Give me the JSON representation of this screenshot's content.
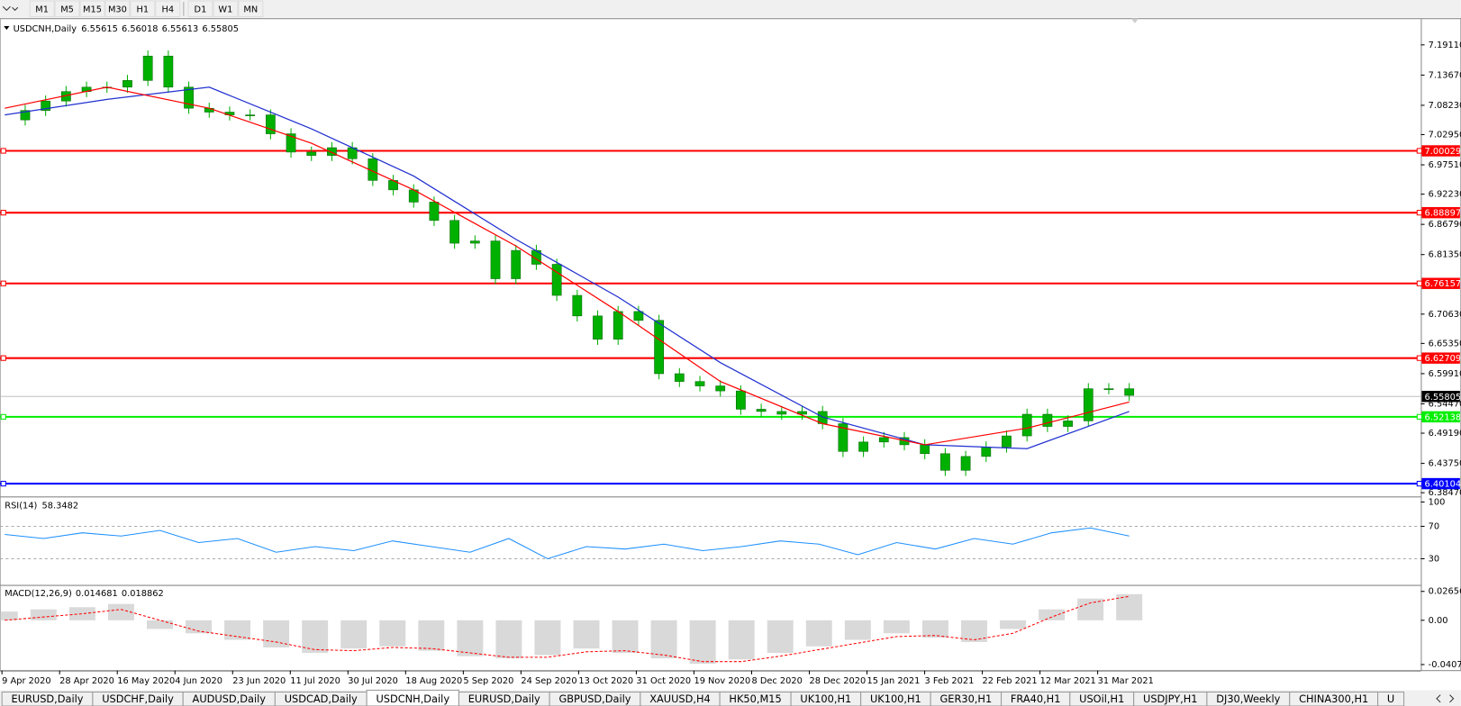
{
  "toolbar": {
    "buttons": [
      "M1",
      "M5",
      "M15",
      "M30",
      "H1",
      "H4",
      "D1",
      "W1",
      "MN"
    ]
  },
  "chart": {
    "symbol": "USDCNH,Daily",
    "ohlc": [
      6.55615,
      6.56018,
      6.55613,
      6.55805
    ],
    "ylim": [
      6.378,
      7.235
    ],
    "yticks": [
      {
        "value": 7.1911,
        "label": "7.19110"
      },
      {
        "value": 7.1367,
        "label": "7.13670"
      },
      {
        "value": 7.0823,
        "label": "7.08230"
      },
      {
        "value": 7.0295,
        "label": "7.02950"
      },
      {
        "value": 6.9751,
        "label": "6.97510"
      },
      {
        "value": 6.9223,
        "label": "6.92230"
      },
      {
        "value": 6.8679,
        "label": "6.86790"
      },
      {
        "value": 6.8135,
        "label": "6.81350"
      },
      {
        "value": 6.7063,
        "label": "6.70630"
      },
      {
        "value": 6.6535,
        "label": "6.65350"
      },
      {
        "value": 6.5991,
        "label": "6.59910"
      },
      {
        "value": 6.5447,
        "label": "6.54470"
      },
      {
        "value": 6.4919,
        "label": "6.49190"
      },
      {
        "value": 6.4375,
        "label": "6.43750"
      },
      {
        "value": 6.3847,
        "label": "6.38470"
      }
    ],
    "current": 6.55805,
    "levels": [
      {
        "value": 7.00029,
        "color": "#ff0000"
      },
      {
        "value": 6.88897,
        "color": "#ff0000"
      },
      {
        "value": 6.76157,
        "color": "#ff0000"
      },
      {
        "value": 6.62709,
        "color": "#ff0000"
      },
      {
        "value": 6.52138,
        "color": "#00ee00"
      },
      {
        "value": 6.40104,
        "color": "#0000ff"
      }
    ],
    "close": {
      "color": "#00b000",
      "values": [
        7.056,
        7.073,
        7.09,
        7.107,
        7.115,
        7.115,
        7.127,
        7.171,
        7.115,
        7.077,
        7.07,
        7.065,
        7.065,
        7.031,
        6.998,
        6.992,
        7.006,
        6.986,
        6.947,
        6.93,
        6.908,
        6.875,
        6.834,
        6.838,
        6.77,
        6.821,
        6.796,
        6.74,
        6.703,
        6.661,
        6.711,
        6.695,
        6.599,
        6.585,
        6.577,
        6.568,
        6.535,
        6.531,
        6.526,
        6.531,
        6.509,
        6.459,
        6.476,
        6.484,
        6.471,
        6.455,
        6.425,
        6.45,
        6.467,
        6.487,
        6.526,
        6.504,
        6.514,
        6.572,
        6.572,
        6.56
      ]
    },
    "ma_fast": {
      "color": "#ff0000",
      "values": [
        7.077,
        7.115,
        7.077,
        7.014,
        6.93,
        6.829,
        6.711,
        6.585,
        6.509,
        6.471,
        6.501,
        6.548
      ]
    },
    "ma_slow": {
      "color": "#2030d0",
      "values": [
        7.065,
        7.093,
        7.115,
        7.04,
        6.955,
        6.841,
        6.737,
        6.619,
        6.521,
        6.471,
        6.464,
        6.531
      ]
    },
    "time_labels": [
      "9 Apr 2020",
      "28 Apr 2020",
      "16 May 2020",
      "4 Jun 2020",
      "23 Jun 2020",
      "11 Jul 2020",
      "30 Jul 2020",
      "18 Aug 2020",
      "5 Sep 2020",
      "24 Sep 2020",
      "13 Oct 2020",
      "31 Oct 2020",
      "19 Nov 2020",
      "8 Dec 2020",
      "28 Dec 2020",
      "15 Jan 2021",
      "3 Feb 2021",
      "22 Feb 2021",
      "12 Mar 2021",
      "31 Mar 2021"
    ]
  },
  "rsi": {
    "label": "RSI(14)",
    "value": 58.3482,
    "ylim": [
      0,
      100
    ],
    "yticks": [
      100,
      70,
      30
    ],
    "levels": [
      70,
      30
    ],
    "color": "#1e90ff",
    "values": [
      60,
      55,
      62,
      58,
      65,
      50,
      55,
      38,
      45,
      40,
      52,
      45,
      38,
      55,
      30,
      45,
      42,
      48,
      40,
      45,
      52,
      48,
      35,
      50,
      42,
      55,
      48,
      62,
      68,
      58
    ]
  },
  "macd": {
    "label": "MACD(12,26,9)",
    "main": 0.014681,
    "signal_value": 0.018862,
    "ylim": [
      -0.0463,
      0.0308
    ],
    "yticks": [
      0.02656,
      {
        "value": 0,
        "label": "0.00"
      },
      -0.040732
    ],
    "hist_color": "#c0c0c0",
    "signal_color": "#ff0000",
    "histogram": [
      0.008,
      0.01,
      0.012,
      0.015,
      -0.008,
      -0.012,
      -0.018,
      -0.025,
      -0.03,
      -0.026,
      -0.024,
      -0.028,
      -0.033,
      -0.035,
      -0.032,
      -0.026,
      -0.03,
      -0.035,
      -0.04,
      -0.036,
      -0.03,
      -0.024,
      -0.018,
      -0.012,
      -0.016,
      -0.02,
      -0.008,
      0.01,
      0.02,
      0.024
    ],
    "signal": [
      0,
      0.003,
      0.006,
      0.01,
      0,
      -0.01,
      -0.015,
      -0.02,
      -0.027,
      -0.028,
      -0.025,
      -0.026,
      -0.03,
      -0.034,
      -0.034,
      -0.029,
      -0.028,
      -0.032,
      -0.038,
      -0.038,
      -0.033,
      -0.027,
      -0.021,
      -0.015,
      -0.014,
      -0.018,
      -0.012,
      0.003,
      0.016,
      0.022
    ]
  },
  "tabs": {
    "items": [
      "EURUSD,Daily",
      "USDCHF,Daily",
      "AUDUSD,Daily",
      "USDCAD,Daily",
      "USDCNH,Daily",
      "EURUSD,Daily",
      "GBPUSD,Daily",
      "XAUUSD,H4",
      "HK50,M15",
      "UK100,H1",
      "UK100,H1",
      "GER30,H1",
      "FRA40,H1",
      "USOil,H1",
      "USDJPY,H1",
      "DJ30,Weekly",
      "CHINA300,H1",
      "U"
    ],
    "active": 4
  }
}
